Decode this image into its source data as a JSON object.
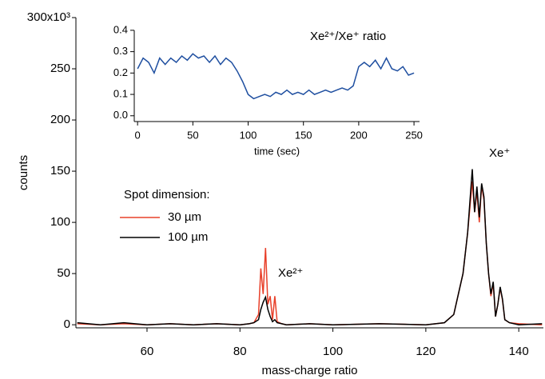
{
  "chart_data": [
    {
      "type": "line",
      "x_label": "mass-charge ratio",
      "y_label": "counts",
      "legend_title": "Spot dimension:",
      "annotations": [
        "Xe⁺",
        "Xe²⁺"
      ],
      "x": [
        45,
        50,
        55,
        60,
        65,
        70,
        75,
        80,
        82,
        83,
        84,
        84.5,
        85,
        85.5,
        86,
        86.5,
        87,
        87.5,
        88,
        89,
        90,
        95,
        100,
        110,
        120,
        124,
        126,
        128,
        129,
        130,
        130.5,
        131,
        131.5,
        132,
        132.5,
        133,
        133.5,
        134,
        134.5,
        135,
        135.5,
        136,
        136.5,
        137,
        138,
        140,
        145
      ],
      "series": [
        {
          "name": "30 µm",
          "color": "#e8402a",
          "values": [
            1,
            0,
            1,
            0,
            1,
            0,
            1,
            0,
            1,
            2,
            10,
            55,
            30,
            75,
            20,
            28,
            5,
            28,
            3,
            1,
            0,
            1,
            0,
            1,
            0,
            2,
            10,
            50,
            90,
            140,
            110,
            130,
            100,
            136,
            122,
            80,
            50,
            28,
            40,
            8,
            20,
            36,
            24,
            5,
            2,
            1,
            0
          ]
        },
        {
          "name": "100 µm",
          "color": "#000000",
          "values": [
            2,
            0,
            2,
            0,
            1,
            0,
            1,
            0,
            1,
            2,
            5,
            15,
            22,
            27,
            15,
            8,
            3,
            5,
            2,
            1,
            0,
            1,
            0,
            1,
            0,
            2,
            10,
            50,
            90,
            152,
            110,
            135,
            105,
            138,
            125,
            80,
            50,
            30,
            42,
            8,
            20,
            37,
            25,
            5,
            2,
            0,
            1
          ]
        }
      ],
      "xlim": [
        44.7,
        145.3
      ],
      "xticks": [
        60,
        80,
        100,
        120,
        140
      ],
      "ylim": [
        -3,
        300
      ],
      "yticks": [
        0,
        50,
        100,
        150,
        200,
        250,
        {
          "value": 300,
          "label": "300x10³"
        }
      ]
    },
    {
      "type": "line",
      "title": "Xe²⁺/Xe⁺ ratio",
      "x_label": "time (sec)",
      "x": [
        0,
        5,
        10,
        15,
        20,
        25,
        30,
        35,
        40,
        45,
        50,
        55,
        60,
        65,
        70,
        75,
        80,
        85,
        90,
        95,
        100,
        105,
        110,
        115,
        120,
        125,
        130,
        135,
        140,
        145,
        150,
        155,
        160,
        165,
        170,
        175,
        180,
        185,
        190,
        195,
        200,
        205,
        210,
        215,
        220,
        225,
        230,
        235,
        240,
        245,
        250
      ],
      "series": [
        {
          "color": "#1f4fa0",
          "values": [
            0.22,
            0.27,
            0.25,
            0.2,
            0.27,
            0.24,
            0.27,
            0.25,
            0.28,
            0.26,
            0.29,
            0.27,
            0.28,
            0.25,
            0.28,
            0.24,
            0.27,
            0.25,
            0.21,
            0.16,
            0.1,
            0.08,
            0.09,
            0.1,
            0.09,
            0.11,
            0.1,
            0.12,
            0.1,
            0.11,
            0.1,
            0.12,
            0.1,
            0.11,
            0.12,
            0.11,
            0.12,
            0.13,
            0.12,
            0.14,
            0.23,
            0.25,
            0.23,
            0.26,
            0.22,
            0.27,
            0.22,
            0.21,
            0.23,
            0.19,
            0.2
          ]
        }
      ],
      "xlim": [
        -3,
        255
      ],
      "xticks": [
        0,
        50,
        100,
        150,
        200,
        250
      ],
      "ylim": [
        -0.027,
        0.437
      ],
      "yticks": [
        {
          "value": 0,
          "label": "0.0"
        },
        0.1,
        0.2,
        0.3,
        0.4
      ]
    }
  ]
}
